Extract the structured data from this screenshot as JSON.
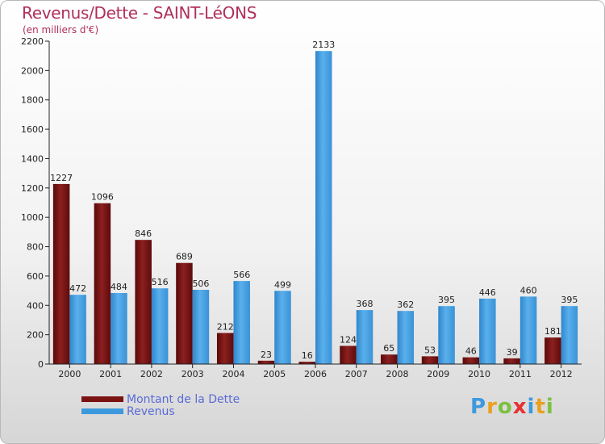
{
  "chart_data": {
    "type": "bar",
    "title": "Revenus/Dette - SAINT-LéONS",
    "subtitle": "(en milliers d'€)",
    "categories": [
      "2000",
      "2001",
      "2002",
      "2003",
      "2004",
      "2005",
      "2006",
      "2007",
      "2008",
      "2009",
      "2010",
      "2011",
      "2012"
    ],
    "series": [
      {
        "name": "Montant de la Dette",
        "color": "#7a1212",
        "values": [
          1227,
          1096,
          846,
          689,
          212,
          23,
          16,
          124,
          65,
          53,
          46,
          39,
          181
        ]
      },
      {
        "name": "Revenus",
        "color": "#3d99dd",
        "values": [
          472,
          484,
          516,
          506,
          566,
          499,
          2133,
          368,
          362,
          395,
          446,
          460,
          395
        ]
      }
    ],
    "ylim": [
      0,
      2200
    ],
    "yticks": [
      0,
      200,
      400,
      600,
      800,
      1000,
      1200,
      1400,
      1600,
      1800,
      2000,
      2200
    ],
    "grid": false,
    "legend_position": "bottom-left"
  },
  "logo": {
    "letters": [
      "P",
      "r",
      "o",
      "x",
      "i",
      "t",
      "i"
    ],
    "colors": [
      "#3d99dd",
      "#e8a020",
      "#7cc040",
      "#e83030",
      "#3d99dd",
      "#e8a020",
      "#7cc040"
    ]
  }
}
